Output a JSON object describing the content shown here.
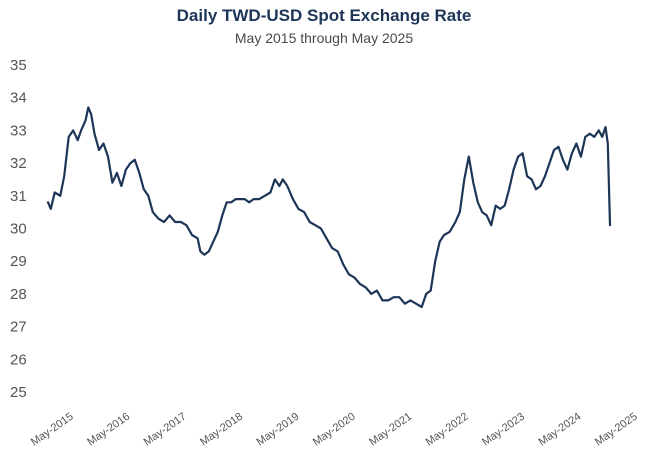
{
  "chart_data": {
    "type": "line",
    "title": "Daily TWD-USD Spot Exchange Rate",
    "subtitle": "May 2015 through May 2025",
    "xlabel": "",
    "ylabel": "",
    "ylim": [
      25,
      35
    ],
    "yticks": [
      "25",
      "26",
      "27",
      "28",
      "29",
      "30",
      "31",
      "32",
      "33",
      "34",
      "35"
    ],
    "xlim": [
      2015.33,
      2025.36
    ],
    "xticks": [
      "May-2015",
      "May-2016",
      "May-2017",
      "May-2018",
      "May-2019",
      "May-2020",
      "May-2021",
      "May-2022",
      "May-2023",
      "May-2024",
      "May-2025"
    ],
    "line_color": "#1d3557",
    "series": [
      {
        "name": "TWD-USD",
        "x": [
          2015.33,
          2015.38,
          2015.45,
          2015.55,
          2015.62,
          2015.7,
          2015.78,
          2015.86,
          2015.92,
          2016.0,
          2016.05,
          2016.1,
          2016.16,
          2016.24,
          2016.32,
          2016.4,
          2016.48,
          2016.56,
          2016.64,
          2016.72,
          2016.8,
          2016.88,
          2016.96,
          2017.04,
          2017.12,
          2017.2,
          2017.3,
          2017.4,
          2017.5,
          2017.6,
          2017.7,
          2017.8,
          2017.9,
          2018.0,
          2018.05,
          2018.12,
          2018.2,
          2018.28,
          2018.36,
          2018.44,
          2018.52,
          2018.6,
          2018.68,
          2018.76,
          2018.84,
          2018.92,
          2019.0,
          2019.1,
          2019.2,
          2019.3,
          2019.38,
          2019.46,
          2019.52,
          2019.6,
          2019.7,
          2019.8,
          2019.9,
          2020.0,
          2020.1,
          2020.2,
          2020.3,
          2020.4,
          2020.5,
          2020.6,
          2020.7,
          2020.8,
          2020.9,
          2021.0,
          2021.1,
          2021.2,
          2021.3,
          2021.4,
          2021.5,
          2021.6,
          2021.7,
          2021.8,
          2021.9,
          2022.0,
          2022.08,
          2022.16,
          2022.24,
          2022.32,
          2022.4,
          2022.5,
          2022.6,
          2022.68,
          2022.76,
          2022.84,
          2022.92,
          2023.0,
          2023.08,
          2023.16,
          2023.24,
          2023.32,
          2023.4,
          2023.48,
          2023.56,
          2023.64,
          2023.72,
          2023.8,
          2023.88,
          2023.96,
          2024.04,
          2024.12,
          2024.2,
          2024.28,
          2024.36,
          2024.44,
          2024.52,
          2024.6,
          2024.68,
          2024.76,
          2024.84,
          2024.92,
          2025.0,
          2025.08,
          2025.16,
          2025.22,
          2025.28,
          2025.32,
          2025.36
        ],
        "values": [
          30.8,
          30.6,
          31.1,
          31.0,
          31.6,
          32.8,
          33.0,
          32.7,
          33.0,
          33.3,
          33.7,
          33.5,
          32.9,
          32.4,
          32.6,
          32.2,
          31.4,
          31.7,
          31.3,
          31.8,
          32.0,
          32.1,
          31.7,
          31.2,
          31.0,
          30.5,
          30.3,
          30.2,
          30.4,
          30.2,
          30.2,
          30.1,
          29.8,
          29.7,
          29.3,
          29.2,
          29.3,
          29.6,
          29.9,
          30.4,
          30.8,
          30.8,
          30.9,
          30.9,
          30.9,
          30.8,
          30.9,
          30.9,
          31.0,
          31.1,
          31.5,
          31.3,
          31.5,
          31.3,
          30.9,
          30.6,
          30.5,
          30.2,
          30.1,
          30.0,
          29.7,
          29.4,
          29.3,
          28.9,
          28.6,
          28.5,
          28.3,
          28.2,
          28.0,
          28.1,
          27.8,
          27.8,
          27.9,
          27.9,
          27.7,
          27.8,
          27.7,
          27.6,
          28.0,
          28.1,
          29.0,
          29.6,
          29.8,
          29.9,
          30.2,
          30.5,
          31.5,
          32.2,
          31.4,
          30.8,
          30.5,
          30.4,
          30.1,
          30.7,
          30.6,
          30.7,
          31.2,
          31.8,
          32.2,
          32.3,
          31.6,
          31.5,
          31.2,
          31.3,
          31.6,
          32.0,
          32.4,
          32.5,
          32.1,
          31.8,
          32.3,
          32.6,
          32.2,
          32.8,
          32.9,
          32.8,
          33.0,
          32.8,
          33.1,
          32.6,
          30.1
        ]
      }
    ]
  }
}
